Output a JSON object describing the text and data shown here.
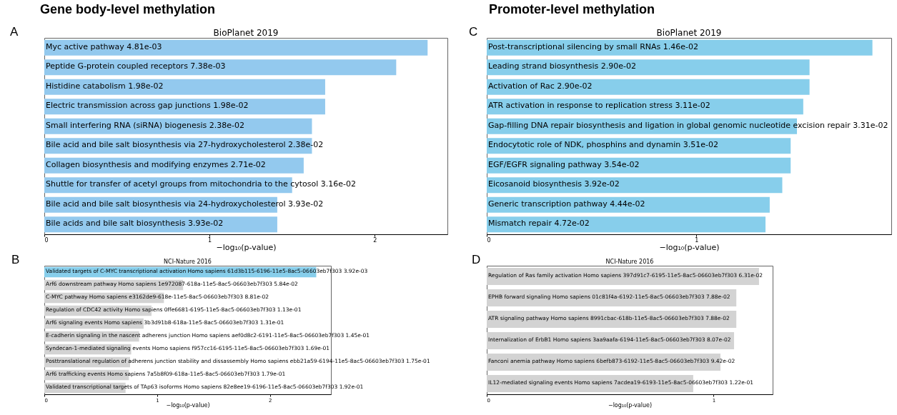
{
  "chart_data": [
    {
      "type": "bar",
      "orientation": "horizontal",
      "title": "BioPlanet 2019",
      "xlabel": "−log₁₀(p-value)",
      "annotations": [
        "Gene body-level methylation",
        "A"
      ],
      "categories": [
        "Myc active pathway  4.81e-03",
        "Peptide G-protein coupled receptors  7.38e-03",
        "Histidine catabolism  1.98e-02",
        "Electric transmission across gap junctions  1.98e-02",
        "Small interfering RNA (siRNA) biogenesis  2.38e-02",
        "Bile acid and bile salt biosynthesis via 27-hydroxycholesterol  2.38e-02",
        "Collagen biosynthesis and modifying enzymes  2.71e-02",
        "Shuttle for transfer of acetyl groups from mitochondria to the cytosol  3.16e-02",
        "Bile acid and bile salt biosynthesis via 24-hydroxycholesterol  3.93e-02",
        "Bile acids and bile salt biosynthesis  3.93e-02"
      ],
      "values": [
        2.32,
        2.13,
        1.7,
        1.7,
        1.62,
        1.62,
        1.57,
        1.5,
        1.41,
        1.41
      ],
      "colors": [
        "#93c9ee",
        "#93c9ee",
        "#93c9ee",
        "#93c9ee",
        "#93c9ee",
        "#93c9ee",
        "#93c9ee",
        "#93c9ee",
        "#93c9ee",
        "#93c9ee"
      ],
      "xlim": [
        0,
        2.44
      ],
      "xticks": [
        0,
        1,
        2
      ],
      "grid": false,
      "legend": false
    },
    {
      "type": "bar",
      "orientation": "horizontal",
      "title": "NCI-Nature 2016",
      "xlabel": "−log₁₀(p-value)",
      "annotations": [
        "B"
      ],
      "categories": [
        "Validated targets of C-MYC transcriptional activation Homo sapiens 61d3b115-6196-11e5-8ac5-06603eb7f303  3.92e-03",
        "Arf6 downstream pathway Homo sapiens 1e972087-618a-11e5-8ac5-06603eb7f303  5.84e-02",
        "C-MYC pathway Homo sapiens e3162de9-618e-11e5-8ac5-06603eb7f303  8.81e-02",
        "Regulation of CDC42 activity Homo sapiens 0ffe6681-6195-11e5-8ac5-06603eb7f303  1.13e-01",
        "Arf6 signaling events Homo sapiens 3b3d91b8-618a-11e5-8ac5-06603eb7f303  1.31e-01",
        "E-cadherin signaling in the nascent adherens junction Homo sapiens aef0d8c2-6191-11e5-8ac5-06603eb7f303  1.45e-01",
        "Syndecan-1-mediated signaling events Homo sapiens f957cc16-6195-11e5-8ac5-06603eb7f303  1.69e-01",
        "Posttranslational regulation of adherens junction stability and dissassembly Homo sapiens ebb21a59-6194-11e5-8ac5-06603eb7f303  1.75e-01",
        "Arf6 trafficking events Homo sapiens 7a5b8f09-618a-11e5-8ac5-06603eb7f303  1.79e-01",
        "Validated transcriptional targets of TAp63 isoforms Homo sapiens 82e8ee19-6196-11e5-8ac5-06603eb7f303  1.92e-01"
      ],
      "values": [
        2.41,
        1.23,
        1.06,
        0.95,
        0.88,
        0.84,
        0.77,
        0.76,
        0.75,
        0.72
      ],
      "colors": [
        "#87ceeb",
        "#d3d3d3",
        "#d3d3d3",
        "#d3d3d3",
        "#d3d3d3",
        "#d3d3d3",
        "#d3d3d3",
        "#d3d3d3",
        "#d3d3d3",
        "#d3d3d3"
      ],
      "xlim": [
        0,
        2.54
      ],
      "xticks": [
        0,
        1,
        2
      ],
      "grid": false,
      "legend": false
    },
    {
      "type": "bar",
      "orientation": "horizontal",
      "title": "BioPlanet 2019",
      "xlabel": "−log₁₀(p-value)",
      "annotations": [
        "Promoter-level methylation",
        "C"
      ],
      "categories": [
        "Post-transcriptional silencing by small RNAs  1.46e-02",
        "Leading strand biosynthesis  2.90e-02",
        "Activation of Rac  2.90e-02",
        "ATR activation in response to replication stress  3.11e-02",
        "Gap-filling DNA repair biosynthesis and ligation in global genomic nucleotide excision repair  3.31e-02",
        "Endocytotic role of NDK, phosphins and dynamin  3.51e-02",
        "EGF/EGFR signaling pathway  3.54e-02",
        "Eicosanoid biosynthesis  3.92e-02",
        "Generic transcription pathway  4.44e-02",
        "Mismatch repair  4.72e-02"
      ],
      "values": [
        1.84,
        1.54,
        1.54,
        1.51,
        1.48,
        1.45,
        1.45,
        1.41,
        1.35,
        1.33
      ],
      "colors": [
        "#87ceeb",
        "#87ceeb",
        "#87ceeb",
        "#87ceeb",
        "#87ceeb",
        "#87ceeb",
        "#87ceeb",
        "#87ceeb",
        "#87ceeb",
        "#87ceeb"
      ],
      "xlim": [
        0,
        1.93
      ],
      "xticks": [
        0,
        1
      ],
      "grid": false,
      "legend": false
    },
    {
      "type": "bar",
      "orientation": "horizontal",
      "title": "NCI-Nature 2016",
      "xlabel": "−log₁₀(p-value)",
      "annotations": [
        "D"
      ],
      "categories": [
        "Regulation of Ras family activation Homo sapiens 397d91c7-6195-11e5-8ac5-06603eb7f303  6.31e-02",
        "EPHB forward signaling Homo sapiens 01c81f4a-6192-11e5-8ac5-06603eb7f303  7.88e-02",
        "ATR signaling pathway Homo sapiens 8991cbac-618b-11e5-8ac5-06603eb7f303  7.88e-02",
        "Internalization of ErbB1 Homo sapiens 3aa9aafa-6194-11e5-8ac5-06603eb7f303  8.07e-02",
        "Fanconi anemia pathway Homo sapiens 6befb873-6192-11e5-8ac5-06603eb7f303  9.42e-02",
        "IL12-mediated signaling events Homo sapiens 7acdea19-6193-11e5-8ac5-06603eb7f303  1.22e-01"
      ],
      "values": [
        1.2,
        1.1,
        1.1,
        1.09,
        1.03,
        0.91
      ],
      "colors": [
        "#d3d3d3",
        "#d3d3d3",
        "#d3d3d3",
        "#d3d3d3",
        "#d3d3d3",
        "#d3d3d3"
      ],
      "xlim": [
        0,
        1.26
      ],
      "xticks": [
        0,
        1
      ],
      "grid": false,
      "legend": false
    }
  ]
}
